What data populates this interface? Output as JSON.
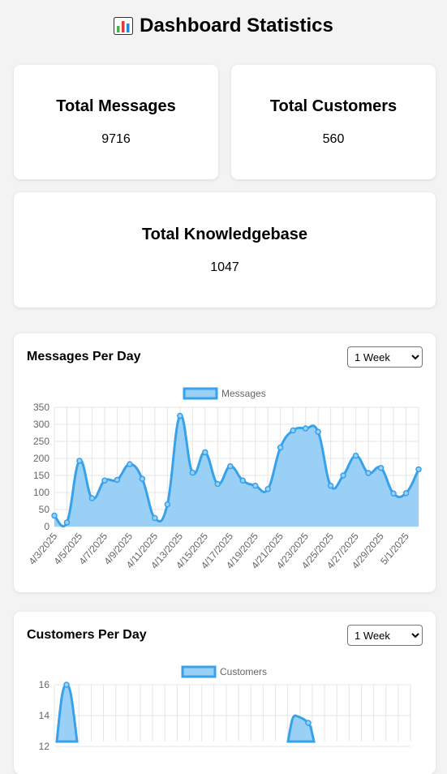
{
  "header": {
    "title": "Dashboard Statistics",
    "icon": "bar-chart-icon"
  },
  "stats": {
    "messages": {
      "label": "Total Messages",
      "value": "9716"
    },
    "customers": {
      "label": "Total Customers",
      "value": "560"
    },
    "knowledgebase": {
      "label": "Total Knowledgebase",
      "value": "1047"
    }
  },
  "messages_section": {
    "title": "Messages Per Day",
    "range_selected": "1 Week",
    "range_options": [
      "1 Week"
    ]
  },
  "customers_section": {
    "title": "Customers Per Day",
    "range_selected": "1 Week",
    "range_options": [
      "1 Week"
    ]
  },
  "colors": {
    "line": "#36a2eb",
    "fill": "#9ad0f5",
    "grid": "#e5e5e5"
  },
  "chart_data": [
    {
      "type": "area",
      "x": [
        "4/3/2025",
        "4/4/2025",
        "4/5/2025",
        "4/6/2025",
        "4/7/2025",
        "4/8/2025",
        "4/9/2025",
        "4/10/2025",
        "4/11/2025",
        "4/12/2025",
        "4/13/2025",
        "4/14/2025",
        "4/15/2025",
        "4/16/2025",
        "4/17/2025",
        "4/18/2025",
        "4/19/2025",
        "4/20/2025",
        "4/21/2025",
        "4/22/2025",
        "4/23/2025",
        "4/24/2025",
        "4/25/2025",
        "4/26/2025",
        "4/27/2025",
        "4/28/2025",
        "4/29/2025",
        "4/30/2025",
        "5/1/2025",
        "5/2/2025"
      ],
      "tick_labels": [
        "4/3/2025",
        "4/5/2025",
        "4/7/2025",
        "4/9/2025",
        "4/11/2025",
        "4/13/2025",
        "4/15/2025",
        "4/17/2025",
        "4/19/2025",
        "4/21/2025",
        "4/23/2025",
        "4/25/2025",
        "4/27/2025",
        "4/29/2025",
        "5/1/2025"
      ],
      "series": [
        {
          "name": "Messages",
          "values": [
            32,
            12,
            193,
            83,
            135,
            137,
            183,
            140,
            25,
            65,
            325,
            158,
            218,
            125,
            177,
            135,
            120,
            110,
            232,
            282,
            288,
            278,
            120,
            150,
            208,
            157,
            172,
            97,
            98,
            168
          ]
        }
      ],
      "yticks": [
        0,
        50,
        100,
        150,
        200,
        250,
        300,
        350
      ],
      "ylim": [
        0,
        350
      ],
      "grid": true,
      "legend": "top"
    },
    {
      "type": "area",
      "tick_labels": [],
      "series": [
        {
          "name": "Customers",
          "values": [
            16,
            14
          ]
        }
      ],
      "yticks": [
        16,
        14,
        12
      ],
      "ylim": [
        12,
        16
      ],
      "grid": true,
      "legend": "top"
    }
  ]
}
